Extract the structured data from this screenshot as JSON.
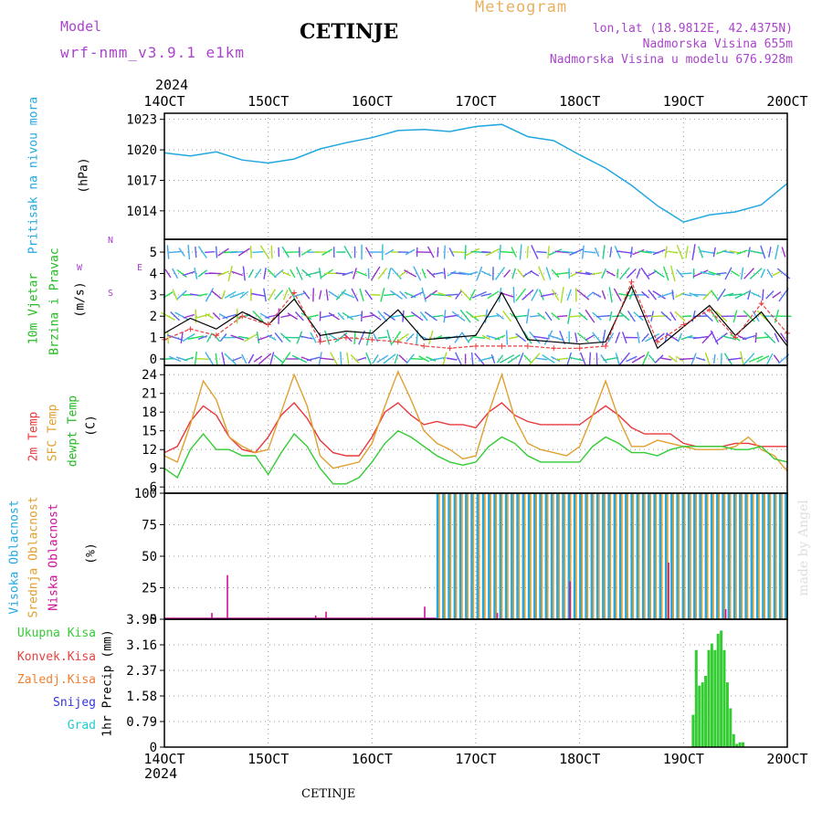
{
  "header": {
    "model_label": "Model",
    "model_name": "wrf-nmm_v3.9.1  e1km",
    "station": "CETINJE",
    "title": "Meteogram",
    "lonlat": "lon,lat (18.9812E, 42.4375N)",
    "elevation": "Nadmorska Visina 655m",
    "model_elevation": "Nadmorska Visina u modelu 676.928m"
  },
  "footer": {
    "station": "CETINJE",
    "credit": "made by Angel"
  },
  "colors": {
    "pressure": "#22a8e0",
    "temp2m": "#e8383c",
    "sfc": "#e0a030",
    "dewpt": "#33cc33",
    "wind_speed": "#000000",
    "gust": "#e84040",
    "high_cloud": "#22a8e0",
    "mid_cloud": "#e0a030",
    "low_cloud": "#cc1199",
    "precip_total": "#33cc33",
    "conv": "#e84040",
    "frz": "#f08030",
    "snow": "#3333dd",
    "hail": "#22cccc",
    "purple_text": "#aa44cc",
    "orange_text": "#e8b060"
  },
  "chart_data": [
    {
      "type": "line",
      "panel": "pressure",
      "year_label": "2024",
      "x_ticks": [
        "14OCT",
        "15OCT",
        "16OCT",
        "17OCT",
        "18OCT",
        "19OCT",
        "20OCT"
      ],
      "ylabel": [
        "Pritisak na nivou mora",
        "(hPa)"
      ],
      "y_ticks": [
        1014,
        1017,
        1020,
        1023
      ],
      "ylim": [
        1011.2,
        1023.6
      ],
      "grid": true,
      "x": [
        0,
        0.25,
        0.5,
        0.75,
        1,
        1.25,
        1.5,
        1.75,
        2,
        2.25,
        2.5,
        2.75,
        3,
        3.25,
        3.5,
        3.75,
        4,
        4.25,
        4.5,
        4.75,
        5,
        5.25,
        5.5,
        5.75,
        6
      ],
      "series": [
        {
          "values": [
            1019.7,
            1019.4,
            1019.8,
            1019.0,
            1018.7,
            1019.1,
            1020.1,
            1020.7,
            1021.2,
            1021.9,
            1022.0,
            1021.8,
            1022.3,
            1022.5,
            1021.3,
            1020.9,
            1019.5,
            1018.2,
            1016.5,
            1014.5,
            1012.9,
            1013.6,
            1013.9,
            1014.6,
            1016.7
          ]
        }
      ]
    },
    {
      "type": "line",
      "panel": "wind",
      "ylabel": [
        "10m Vjetar",
        "Brzina i Pravac",
        "(m/s)"
      ],
      "direction_key": [
        "N",
        "W",
        "E",
        "S"
      ],
      "y_ticks": [
        0,
        1,
        2,
        3,
        4,
        5
      ],
      "ylim": [
        -0.3,
        5.6
      ],
      "grid": true,
      "x": [
        0,
        0.25,
        0.5,
        0.75,
        1,
        1.25,
        1.5,
        1.75,
        2,
        2.25,
        2.5,
        2.75,
        3,
        3.25,
        3.5,
        3.75,
        4,
        4.25,
        4.5,
        4.75,
        5,
        5.25,
        5.5,
        5.75,
        6
      ],
      "series": [
        {
          "values": [
            1.2,
            1.9,
            1.4,
            2.2,
            1.6,
            2.8,
            1.1,
            1.3,
            1.2,
            2.3,
            0.9,
            1.0,
            1.1,
            3.1,
            0.9,
            0.8,
            0.7,
            0.8,
            3.4,
            0.5,
            1.5,
            2.5,
            1.1,
            2.2,
            0.6
          ]
        },
        {
          "values": [
            0.9,
            1.4,
            1.1,
            2.0,
            1.6,
            3.1,
            0.8,
            1.0,
            0.9,
            0.8,
            0.6,
            0.5,
            0.6,
            0.6,
            0.6,
            0.5,
            0.5,
            0.6,
            3.6,
            0.8,
            1.6,
            2.3,
            1.0,
            2.6,
            1.2
          ]
        }
      ]
    },
    {
      "type": "line",
      "panel": "temperature",
      "ylabel": [
        "2m Temp",
        "SFC Temp",
        "dewpt Temp",
        "(C)"
      ],
      "y_ticks": [
        6,
        9,
        12,
        15,
        18,
        21,
        24
      ],
      "ylim": [
        5,
        25.5
      ],
      "grid": true,
      "x": [
        0,
        0.125,
        0.25,
        0.375,
        0.5,
        0.625,
        0.75,
        0.875,
        1,
        1.125,
        1.25,
        1.375,
        1.5,
        1.625,
        1.75,
        1.875,
        2,
        2.125,
        2.25,
        2.375,
        2.5,
        2.625,
        2.75,
        2.875,
        3,
        3.125,
        3.25,
        3.375,
        3.5,
        3.625,
        3.75,
        3.875,
        4,
        4.125,
        4.25,
        4.375,
        4.5,
        4.625,
        4.75,
        4.875,
        5,
        5.125,
        5.25,
        5.375,
        5.5,
        5.625,
        5.75,
        5.875,
        6
      ],
      "series": [
        {
          "name": "2m Temp",
          "values": [
            11.5,
            12.5,
            16.5,
            19.0,
            17.5,
            14.0,
            12.0,
            11.5,
            14.0,
            17.5,
            19.5,
            17.0,
            13.5,
            11.5,
            11.0,
            11.0,
            14.0,
            18.0,
            19.5,
            17.5,
            16.0,
            16.5,
            16.0,
            16.0,
            15.5,
            18.0,
            19.5,
            17.5,
            16.5,
            16.0,
            16.0,
            16.0,
            16.0,
            17.5,
            19.0,
            17.5,
            15.5,
            14.5,
            14.5,
            14.5,
            13.0,
            12.5,
            12.5,
            12.5,
            13.0,
            13.0,
            12.5,
            12.5,
            12.5
          ]
        },
        {
          "name": "SFC Temp",
          "values": [
            11.0,
            10.0,
            16.0,
            23.0,
            20.0,
            14.0,
            12.5,
            11.5,
            12.0,
            18.0,
            24.0,
            19.0,
            11.0,
            9.0,
            9.5,
            10.0,
            13.0,
            19.0,
            24.5,
            20.0,
            15.0,
            13.0,
            12.0,
            10.5,
            11.0,
            18.0,
            24.0,
            17.0,
            13.0,
            12.0,
            11.5,
            11.0,
            12.5,
            17.5,
            23.0,
            17.0,
            12.5,
            12.5,
            13.5,
            13.0,
            12.5,
            12.0,
            12.0,
            12.0,
            12.5,
            14.0,
            12.0,
            11.0,
            8.5
          ]
        },
        {
          "name": "dewpt Temp",
          "values": [
            9.0,
            7.5,
            12.0,
            14.5,
            12.0,
            12.0,
            11.0,
            11.0,
            8.0,
            11.5,
            14.5,
            12.5,
            9.0,
            6.5,
            6.5,
            7.5,
            10.0,
            13.0,
            15.0,
            14.0,
            12.5,
            11.0,
            10.0,
            9.5,
            10.0,
            12.5,
            14.0,
            13.0,
            11.0,
            10.0,
            10.0,
            10.0,
            10.0,
            12.5,
            14.0,
            13.0,
            11.5,
            11.5,
            11.0,
            12.0,
            12.5,
            12.5,
            12.5,
            12.5,
            12.0,
            12.0,
            12.5,
            10.5,
            10.0
          ]
        }
      ]
    },
    {
      "type": "bar",
      "panel": "clouds",
      "ylabel": [
        "Visoka Oblacnost",
        "Srednja Oblacnost",
        "Niska Oblacnost",
        "(%)"
      ],
      "y_ticks": [
        0,
        25,
        50,
        75,
        100
      ],
      "ylim": [
        0,
        100
      ],
      "grid": true,
      "series": [
        {
          "name": "Visoka Oblacnost",
          "x_start": 2.62,
          "x_end": 6.0,
          "period": 0.055,
          "values": [
            100,
            0
          ]
        },
        {
          "name": "Srednja Oblacnost",
          "x_start": 2.64,
          "x_end": 6.0,
          "period": 0.055,
          "values": [
            100,
            0
          ]
        },
        {
          "name": "Niska Oblacnost",
          "x": [
            0.45,
            0.6,
            1.45,
            1.55,
            2.5,
            3.2,
            3.9,
            4.85,
            5.4
          ],
          "values": [
            5,
            35,
            3,
            6,
            10,
            5,
            30,
            45,
            8
          ]
        }
      ]
    },
    {
      "type": "bar",
      "panel": "precipitation",
      "ylabel": [
        "1hr Precip (mm)"
      ],
      "legend": [
        "Ukupna Kisa",
        "Konvek.Kisa",
        "Zaledj.Kisa",
        "Snijeg",
        "Grad"
      ],
      "y_ticks": [
        0,
        0.79,
        1.58,
        2.37,
        3.16,
        3.95
      ],
      "ylim": [
        0,
        3.95
      ],
      "grid": true,
      "year_label": "2024",
      "x_ticks": [
        "14OCT",
        "15OCT",
        "16OCT",
        "17OCT",
        "18OCT",
        "19OCT",
        "20OCT"
      ],
      "x": [
        5.08,
        5.11,
        5.14,
        5.17,
        5.2,
        5.23,
        5.26,
        5.29,
        5.32,
        5.35,
        5.38,
        5.41,
        5.44,
        5.47,
        5.5,
        5.53,
        5.56
      ],
      "values": [
        1.0,
        3.0,
        1.9,
        2.0,
        2.2,
        3.0,
        3.2,
        3.0,
        3.5,
        3.6,
        3.0,
        2.0,
        1.2,
        0.4,
        0.1,
        0.15,
        0.15
      ]
    }
  ]
}
